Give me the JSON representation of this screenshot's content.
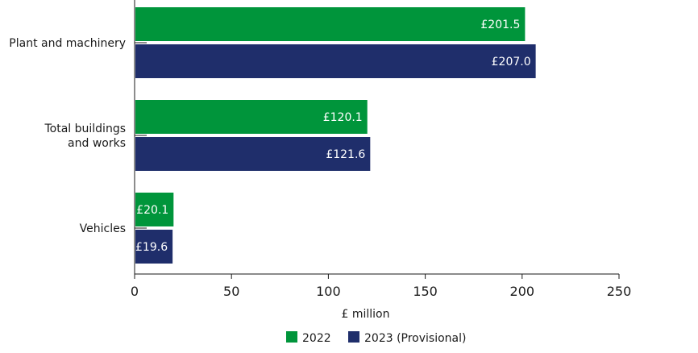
{
  "chart_data": {
    "type": "bar",
    "orientation": "horizontal",
    "categories": [
      "Plant and machinery",
      "Total buildings\nand works",
      "Vehicles"
    ],
    "series": [
      {
        "name": "2022",
        "color": "#00953b",
        "values": [
          201.5,
          120.1,
          20.1
        ],
        "labels": [
          "£201.5",
          "£120.1",
          "£20.1"
        ]
      },
      {
        "name": "2023 (Provisional)",
        "color": "#1f2e6b",
        "values": [
          207.0,
          121.6,
          19.6
        ],
        "labels": [
          "£207.0",
          "£121.6",
          "£19.6"
        ]
      }
    ],
    "xlabel": "£ million",
    "xlim": [
      0,
      250
    ],
    "xticks": [
      0,
      50,
      100,
      150,
      200,
      250
    ],
    "grid": false,
    "legend": "bottom"
  }
}
